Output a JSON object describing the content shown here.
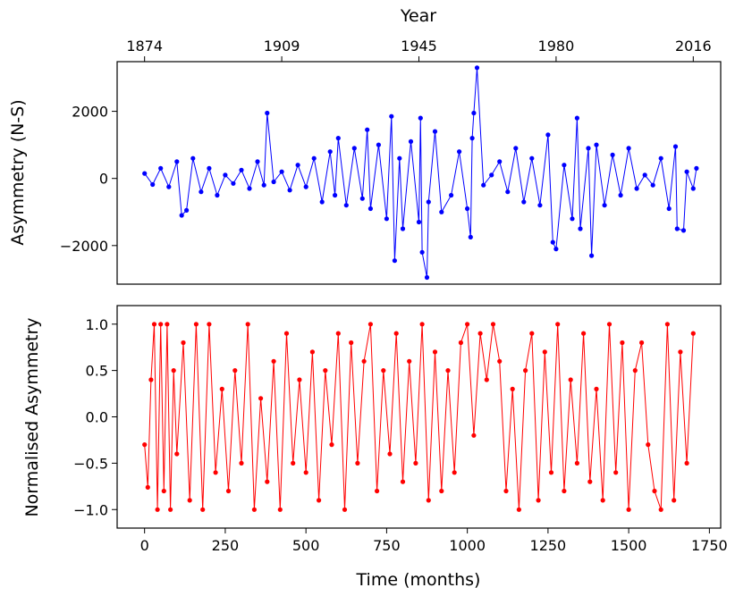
{
  "chart_data": [
    {
      "type": "line",
      "xlabel": "",
      "ylabel": "Asymmetry (N-S)",
      "top_axis_title": "Year",
      "top_axis_ticks": [
        {
          "label": "1874",
          "month": 0
        },
        {
          "label": "1909",
          "month": 425
        },
        {
          "label": "1945",
          "month": 850
        },
        {
          "label": "1980",
          "month": 1275
        },
        {
          "label": "2016",
          "month": 1700
        }
      ],
      "xlim": [
        -85,
        1785
      ],
      "ylim": [
        -3150,
        3480
      ],
      "yticks": [
        -2000,
        0,
        2000
      ],
      "ytick_labels": [
        "−2000",
        "0",
        "2000"
      ],
      "grid": false,
      "series": [
        {
          "color": "#0000ff",
          "marker": "circle",
          "x": [
            0,
            25,
            50,
            75,
            100,
            115,
            130,
            150,
            175,
            200,
            225,
            250,
            275,
            300,
            325,
            350,
            370,
            380,
            400,
            425,
            450,
            475,
            500,
            525,
            550,
            575,
            590,
            600,
            625,
            650,
            675,
            690,
            700,
            725,
            750,
            765,
            775,
            790,
            800,
            825,
            850,
            855,
            860,
            875,
            880,
            900,
            920,
            950,
            975,
            1000,
            1010,
            1015,
            1020,
            1030,
            1050,
            1075,
            1100,
            1125,
            1150,
            1175,
            1200,
            1225,
            1250,
            1265,
            1275,
            1300,
            1325,
            1340,
            1350,
            1375,
            1385,
            1400,
            1425,
            1450,
            1475,
            1500,
            1525,
            1550,
            1575,
            1600,
            1625,
            1645,
            1650,
            1670,
            1680,
            1700,
            1710
          ],
          "y": [
            150,
            -180,
            300,
            -250,
            500,
            -1100,
            -950,
            600,
            -400,
            300,
            -500,
            100,
            -150,
            250,
            -300,
            500,
            -200,
            1950,
            -100,
            200,
            -350,
            400,
            -250,
            600,
            -700,
            800,
            -500,
            1200,
            -800,
            900,
            -600,
            1450,
            -900,
            1000,
            -1200,
            1850,
            -2450,
            600,
            -1500,
            1100,
            -1300,
            1800,
            -2200,
            -2950,
            -700,
            1400,
            -1000,
            -500,
            800,
            -900,
            -1750,
            1200,
            1950,
            3300,
            -200,
            100,
            500,
            -400,
            900,
            -700,
            600,
            -800,
            1300,
            -1900,
            -2100,
            400,
            -1200,
            1800,
            -1500,
            900,
            -2300,
            1000,
            -800,
            700,
            -500,
            900,
            -300,
            100,
            -200,
            600,
            -900,
            950,
            -1500,
            -1550,
            200,
            -300,
            300
          ]
        }
      ]
    },
    {
      "type": "line",
      "xlabel": "Time (months)",
      "ylabel": "Normalised Asymmetry",
      "xlim": [
        -85,
        1785
      ],
      "xticks": [
        0,
        250,
        500,
        750,
        1000,
        1250,
        1500,
        1750
      ],
      "ylim": [
        -1.2,
        1.2
      ],
      "yticks": [
        -1.0,
        -0.5,
        0.0,
        0.5,
        1.0
      ],
      "ytick_labels": [
        "−1.0",
        "−0.5",
        "0.0",
        "0.5",
        "1.0"
      ],
      "grid": false,
      "series": [
        {
          "color": "#ff0000",
          "marker": "circle",
          "x": [
            0,
            10,
            20,
            30,
            40,
            50,
            60,
            70,
            80,
            90,
            100,
            120,
            140,
            160,
            180,
            200,
            220,
            240,
            260,
            280,
            300,
            320,
            340,
            360,
            380,
            400,
            420,
            440,
            460,
            480,
            500,
            520,
            540,
            560,
            580,
            600,
            620,
            640,
            660,
            680,
            700,
            720,
            740,
            760,
            780,
            800,
            820,
            840,
            860,
            880,
            900,
            920,
            940,
            960,
            980,
            1000,
            1020,
            1040,
            1060,
            1080,
            1100,
            1120,
            1140,
            1160,
            1180,
            1200,
            1220,
            1240,
            1260,
            1280,
            1300,
            1320,
            1340,
            1360,
            1380,
            1400,
            1420,
            1440,
            1460,
            1480,
            1500,
            1520,
            1540,
            1560,
            1580,
            1600,
            1620,
            1640,
            1660,
            1680,
            1700
          ],
          "y": [
            -0.3,
            -0.76,
            0.4,
            1.0,
            -1.0,
            1.0,
            -0.8,
            1.0,
            -1.0,
            0.5,
            -0.4,
            0.8,
            -0.9,
            1.0,
            -1.0,
            1.0,
            -0.6,
            0.3,
            -0.8,
            0.5,
            -0.5,
            1.0,
            -1.0,
            0.2,
            -0.7,
            0.6,
            -1.0,
            0.9,
            -0.5,
            0.4,
            -0.6,
            0.7,
            -0.9,
            0.5,
            -0.3,
            0.9,
            -1.0,
            0.8,
            -0.5,
            0.6,
            1.0,
            -0.8,
            0.5,
            -0.4,
            0.9,
            -0.7,
            0.6,
            -0.5,
            1.0,
            -0.9,
            0.7,
            -0.8,
            0.5,
            -0.6,
            0.8,
            1.0,
            -0.2,
            0.9,
            0.4,
            1.0,
            0.6,
            -0.8,
            0.3,
            -1.0,
            0.5,
            0.9,
            -0.9,
            0.7,
            -0.6,
            1.0,
            -0.8,
            0.4,
            -0.5,
            0.9,
            -0.7,
            0.3,
            -0.9,
            1.0,
            -0.6,
            0.8,
            -1.0,
            0.5,
            0.8,
            -0.3,
            -0.8,
            -1.0,
            1.0,
            -0.9,
            0.7,
            -0.5,
            0.9
          ]
        }
      ]
    }
  ]
}
